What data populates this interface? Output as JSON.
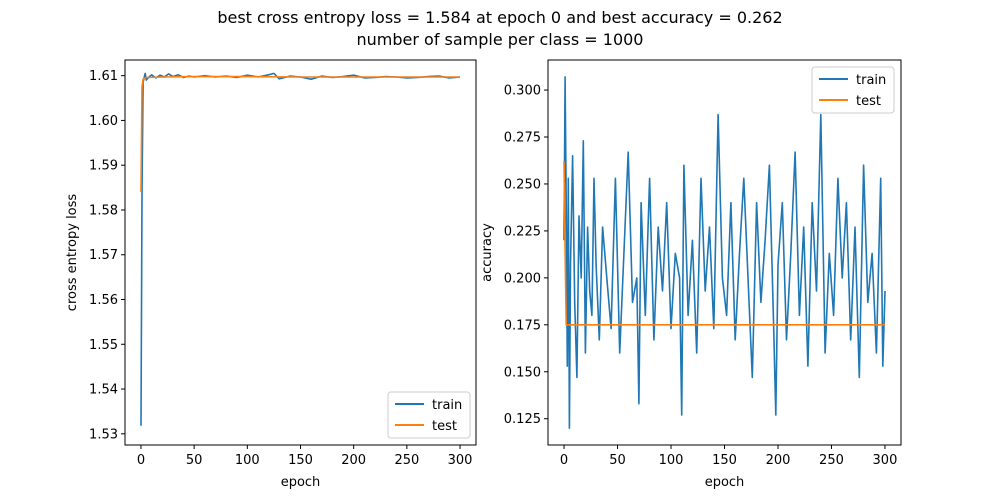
{
  "figure": {
    "title_line1": "best cross entropy loss = 1.584 at epoch 0 and best accuracy = 0.262",
    "title_line2": "number of sample per class = 1000"
  },
  "colors": {
    "train": "#1f77b4",
    "test": "#ff7f0e"
  },
  "chart_data": [
    {
      "type": "line",
      "xlabel": "epoch",
      "ylabel": "cross entropy loss",
      "xlim": [
        -15,
        315
      ],
      "ylim": [
        1.5275,
        1.6135
      ],
      "xticks": [
        0,
        50,
        100,
        150,
        200,
        250,
        300
      ],
      "yticks": [
        1.53,
        1.54,
        1.55,
        1.56,
        1.57,
        1.58,
        1.59,
        1.6,
        1.61
      ],
      "legend_position": "bottom-right",
      "series": [
        {
          "name": "train",
          "color": "#1f77b4",
          "x": [
            0,
            1,
            2,
            3,
            4,
            5,
            6,
            8,
            10,
            14,
            18,
            22,
            26,
            30,
            35,
            40,
            45,
            50,
            60,
            70,
            80,
            90,
            100,
            110,
            120,
            125,
            130,
            140,
            150,
            160,
            170,
            180,
            190,
            200,
            210,
            220,
            230,
            240,
            250,
            260,
            270,
            280,
            290,
            300
          ],
          "y": [
            1.5318,
            1.584,
            1.6085,
            1.6095,
            1.6105,
            1.609,
            1.6093,
            1.6098,
            1.6102,
            1.6095,
            1.6101,
            1.6097,
            1.6104,
            1.6098,
            1.6102,
            1.6096,
            1.6099,
            1.6097,
            1.61,
            1.6097,
            1.6099,
            1.6096,
            1.6101,
            1.6097,
            1.6102,
            1.6105,
            1.6093,
            1.6099,
            1.6097,
            1.6092,
            1.6099,
            1.6096,
            1.6098,
            1.6101,
            1.6095,
            1.6096,
            1.6098,
            1.6097,
            1.6095,
            1.6096,
            1.6098,
            1.6099,
            1.6095,
            1.6097
          ]
        },
        {
          "name": "test",
          "color": "#ff7f0e",
          "x": [
            0,
            1,
            2,
            5,
            20,
            50,
            100,
            150,
            200,
            250,
            300
          ],
          "y": [
            1.584,
            1.6075,
            1.6092,
            1.6096,
            1.6097,
            1.6098,
            1.6098,
            1.6097,
            1.6097,
            1.6097,
            1.6097
          ]
        }
      ]
    },
    {
      "type": "line",
      "xlabel": "epoch",
      "ylabel": "accuracy",
      "xlim": [
        -15,
        315
      ],
      "ylim": [
        0.111,
        0.316
      ],
      "xticks": [
        0,
        50,
        100,
        150,
        200,
        250,
        300
      ],
      "yticks": [
        0.125,
        0.15,
        0.175,
        0.2,
        0.225,
        0.25,
        0.275,
        0.3
      ],
      "legend_position": "top-right",
      "series": [
        {
          "name": "train",
          "color": "#1f77b4",
          "x": [
            0,
            1,
            2,
            3,
            4,
            5,
            6,
            8,
            10,
            12,
            14,
            16,
            18,
            20,
            22,
            24,
            26,
            28,
            30,
            33,
            36,
            40,
            44,
            48,
            52,
            56,
            60,
            64,
            68,
            70,
            72,
            76,
            80,
            84,
            88,
            92,
            96,
            100,
            104,
            108,
            110,
            112,
            116,
            120,
            124,
            128,
            132,
            136,
            140,
            144,
            148,
            152,
            156,
            160,
            164,
            168,
            172,
            176,
            180,
            184,
            188,
            192,
            196,
            198,
            200,
            204,
            208,
            212,
            216,
            220,
            224,
            228,
            232,
            236,
            240,
            244,
            248,
            252,
            256,
            260,
            264,
            268,
            272,
            276,
            280,
            284,
            288,
            292,
            296,
            298,
            300
          ],
          "y": [
            0.22,
            0.307,
            0.24,
            0.153,
            0.253,
            0.12,
            0.207,
            0.265,
            0.187,
            0.147,
            0.233,
            0.2,
            0.273,
            0.16,
            0.227,
            0.193,
            0.18,
            0.253,
            0.207,
            0.167,
            0.227,
            0.2,
            0.173,
            0.253,
            0.16,
            0.213,
            0.267,
            0.187,
            0.2,
            0.133,
            0.24,
            0.18,
            0.253,
            0.167,
            0.227,
            0.193,
            0.24,
            0.173,
            0.213,
            0.2,
            0.127,
            0.26,
            0.18,
            0.22,
            0.16,
            0.253,
            0.193,
            0.227,
            0.173,
            0.287,
            0.2,
            0.18,
            0.24,
            0.167,
            0.213,
            0.253,
            0.2,
            0.147,
            0.24,
            0.187,
            0.22,
            0.26,
            0.173,
            0.127,
            0.207,
            0.24,
            0.167,
            0.213,
            0.267,
            0.18,
            0.227,
            0.153,
            0.24,
            0.193,
            0.287,
            0.16,
            0.213,
            0.18,
            0.253,
            0.2,
            0.24,
            0.167,
            0.227,
            0.147,
            0.26,
            0.187,
            0.213,
            0.16,
            0.253,
            0.153,
            0.193
          ]
        },
        {
          "name": "test",
          "color": "#ff7f0e",
          "x": [
            0,
            1,
            2,
            3,
            300
          ],
          "y": [
            0.262,
            0.215,
            0.175,
            0.175,
            0.175
          ]
        }
      ]
    }
  ]
}
